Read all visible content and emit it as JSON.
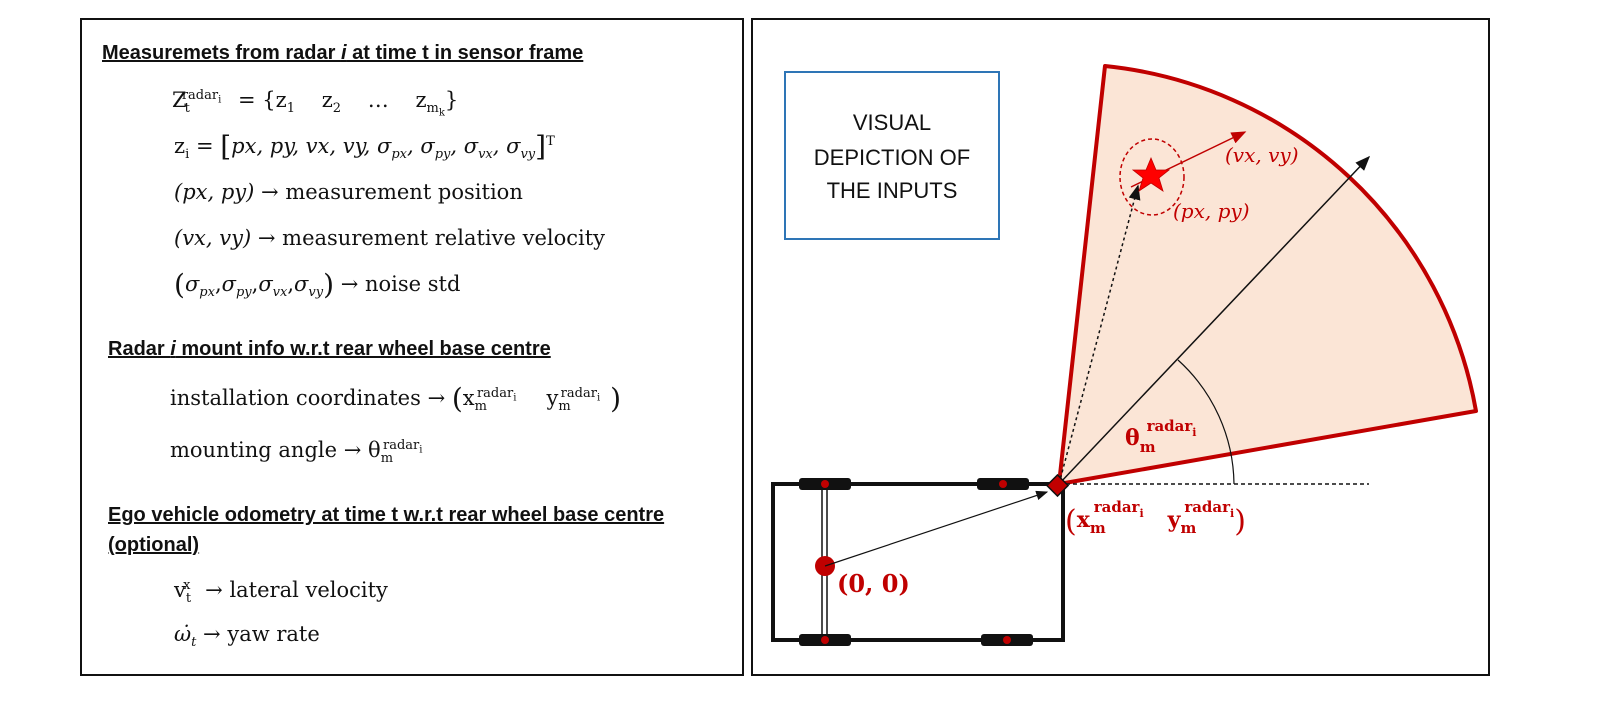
{
  "left": {
    "section1": {
      "heading_before": "Measuremets from radar ",
      "heading_var": "i",
      "heading_after": " at time t in sensor frame",
      "z_set": {
        "lhs_main": "Z",
        "lhs_sub": "t",
        "lhs_sup": "radar",
        "lhs_sup_sub": "i",
        "eq": "= {",
        "z1": "z",
        "z1_sub": "1",
        "z2": "z",
        "z2_sub": "2",
        "dots": "…",
        "zm": "z",
        "zm_sub": "m",
        "zm_sub_sub": "k",
        "close": "}"
      },
      "z_vec": {
        "lhs": "z",
        "lhs_sub": "i",
        "eq": "=",
        "open": "[",
        "content": "px, py, vx, vy, σ",
        "s1": "px",
        "c1": ", σ",
        "s2": "py",
        "c2": ", σ",
        "s3": "vx",
        "c3": ", σ",
        "s4": "vy",
        "close": "]",
        "sup": "T"
      },
      "line_pos": {
        "var": "(px, py)",
        "arrow": "→",
        "desc": "measurement position"
      },
      "line_vel": {
        "var": "(vx, vy)",
        "arrow": "→",
        "desc": "measurement relative velocity"
      },
      "line_noise": {
        "open": "(",
        "sig": "σ",
        "s1": "px",
        "s2": "py",
        "s3": "vx",
        "s4": "vy",
        "sep": ",",
        "close": ")",
        "arrow": "→",
        "desc": "noise std"
      }
    },
    "section2": {
      "heading_before": "Radar ",
      "heading_var": "i",
      "heading_after": " mount info w.r.t rear wheel base centre",
      "install": {
        "desc": "installation coordinates",
        "arrow": "→",
        "x": "x",
        "y": "y",
        "sub": "m",
        "sup": "radar",
        "sup_sub": "i"
      },
      "angle": {
        "desc": "mounting angle",
        "arrow": "→",
        "theta": "θ",
        "sub": "m",
        "sup": "radar",
        "sup_sub": "i"
      }
    },
    "section3": {
      "heading_line1": "Ego vehicle odometry at time t w.r.t rear wheel base centre",
      "heading_line2": "(optional)",
      "vel": {
        "v": "v",
        "sub": "t",
        "sup": "x",
        "arrow": "→",
        "desc": "lateral velocity"
      },
      "yaw": {
        "w": "ω̇",
        "sub": "t",
        "arrow": "→",
        "desc": "yaw rate"
      }
    }
  },
  "right": {
    "box_line1": "VISUAL",
    "box_line2": "DEPICTION OF",
    "box_line3": "THE INPUTS",
    "label_vel": "(vx, vy)",
    "label_pos": "(px, py)",
    "label_origin": "(0, 0)",
    "theta": {
      "main": "θ",
      "sub": "m",
      "sup": "radar",
      "sup_sub": "i"
    },
    "mount": {
      "open": "(",
      "x": "x",
      "y": "y",
      "sub": "m",
      "sup": "radar",
      "sup_sub": "i",
      "close": ")"
    },
    "colors": {
      "red": "#c00000",
      "fov_fill": "#fbe5d6",
      "box_border": "#2e75b6",
      "text": "#111111"
    }
  }
}
